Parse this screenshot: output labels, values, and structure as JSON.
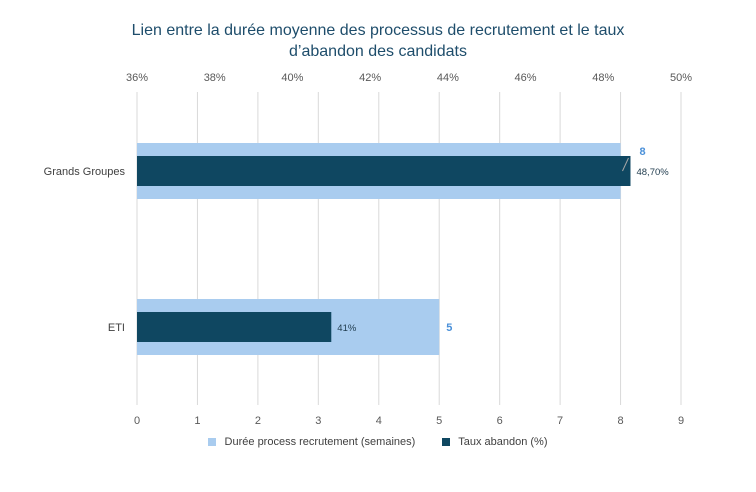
{
  "chart_data": {
    "type": "bar",
    "orientation": "horizontal",
    "title_lines": [
      "Lien entre la durée moyenne des processus de recrutement et le taux",
      "d’abandon des candidats"
    ],
    "categories": [
      "Grands Groupes",
      "ETI"
    ],
    "series": [
      {
        "name": "Durée process recrutement (semaines)",
        "values": [
          8,
          5
        ],
        "labels": [
          "8",
          "5"
        ],
        "axis": "bottom",
        "color": "#a9ccef"
      },
      {
        "name": "Taux abandon (%)",
        "values": [
          48.7,
          41
        ],
        "labels": [
          "48,70%",
          "41%"
        ],
        "axis": "top",
        "color": "#0f4761"
      }
    ],
    "bottom_axis": {
      "min": 0,
      "max": 9,
      "ticks": [
        "0",
        "1",
        "2",
        "3",
        "4",
        "5",
        "6",
        "7",
        "8",
        "9"
      ]
    },
    "top_axis": {
      "min": 36,
      "max": 50,
      "ticks": [
        "36%",
        "38%",
        "40%",
        "42%",
        "44%",
        "46%",
        "48%",
        "50%"
      ]
    },
    "grid": true,
    "legend_position": "bottom"
  }
}
